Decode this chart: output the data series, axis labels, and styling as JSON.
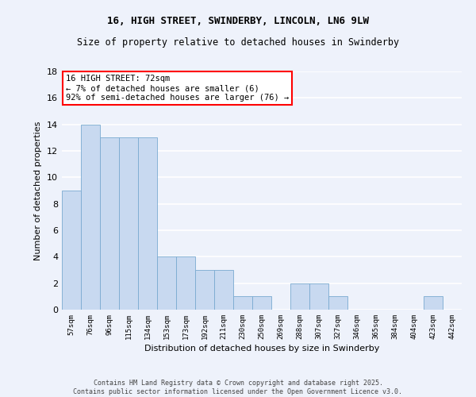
{
  "title_line1": "16, HIGH STREET, SWINDERBY, LINCOLN, LN6 9LW",
  "title_line2": "Size of property relative to detached houses in Swinderby",
  "xlabel": "Distribution of detached houses by size in Swinderby",
  "ylabel": "Number of detached properties",
  "categories": [
    "57sqm",
    "76sqm",
    "96sqm",
    "115sqm",
    "134sqm",
    "153sqm",
    "173sqm",
    "192sqm",
    "211sqm",
    "230sqm",
    "250sqm",
    "269sqm",
    "288sqm",
    "307sqm",
    "327sqm",
    "346sqm",
    "365sqm",
    "384sqm",
    "404sqm",
    "423sqm",
    "442sqm"
  ],
  "values": [
    9,
    14,
    13,
    13,
    13,
    4,
    4,
    3,
    3,
    1,
    1,
    0,
    2,
    2,
    1,
    0,
    0,
    0,
    0,
    1,
    0
  ],
  "bar_color": "#c8d9f0",
  "bar_edge_color": "#7aaad0",
  "annotation_text": "16 HIGH STREET: 72sqm\n← 7% of detached houses are smaller (6)\n92% of semi-detached houses are larger (76) →",
  "annotation_box_color": "white",
  "annotation_box_edge": "red",
  "footer_text": "Contains HM Land Registry data © Crown copyright and database right 2025.\nContains public sector information licensed under the Open Government Licence v3.0.",
  "ylim": [
    0,
    18
  ],
  "yticks": [
    0,
    2,
    4,
    6,
    8,
    10,
    12,
    14,
    16,
    18
  ],
  "background_color": "#eef2fb",
  "grid_color": "white",
  "title_fontsize": 9,
  "subtitle_fontsize": 8.5
}
